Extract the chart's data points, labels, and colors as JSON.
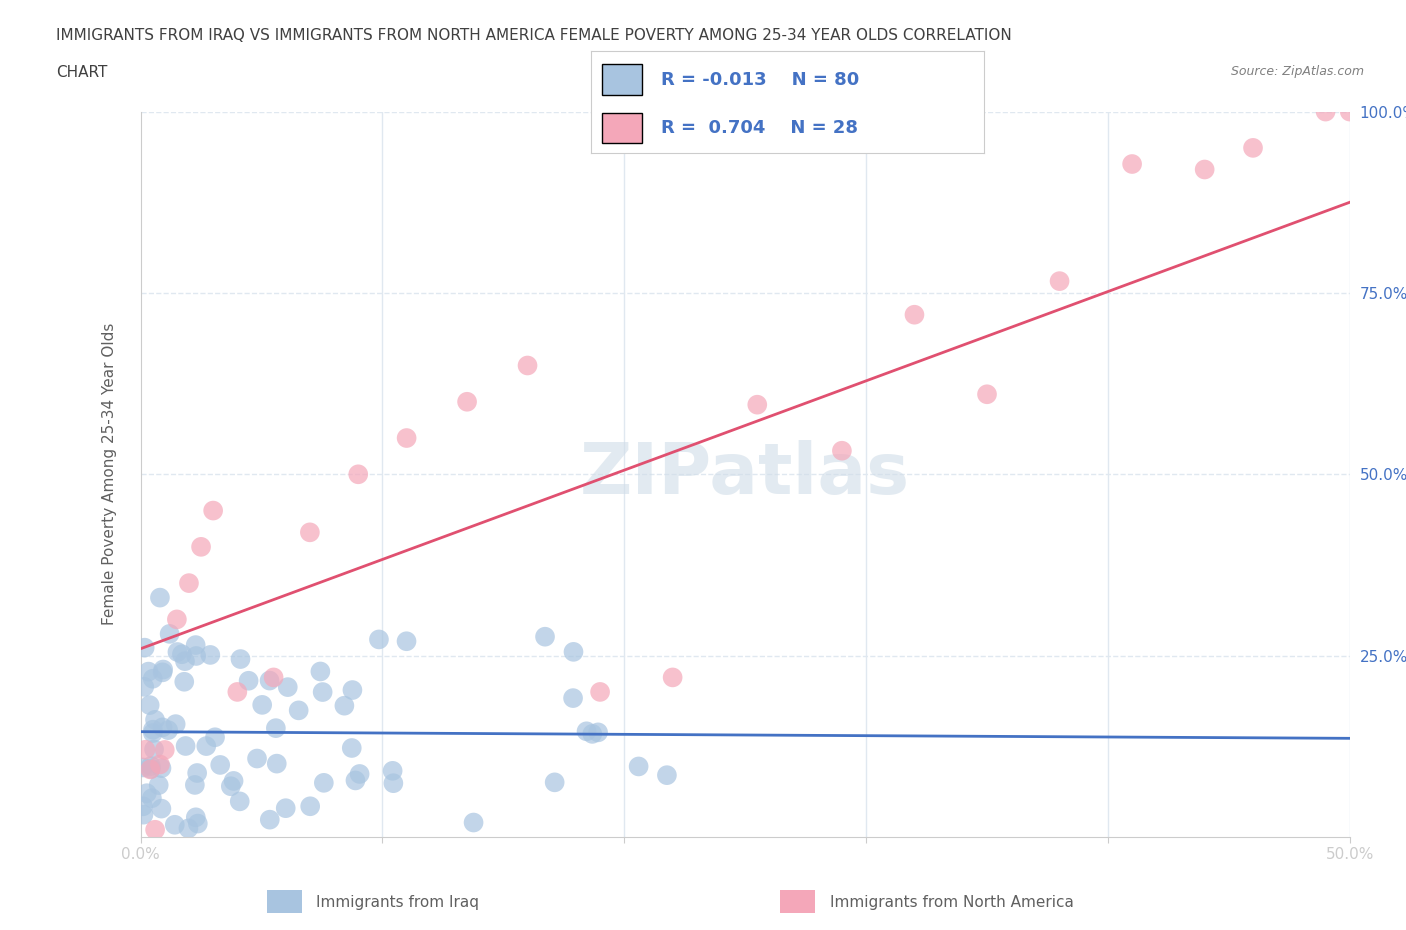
{
  "title_line1": "IMMIGRANTS FROM IRAQ VS IMMIGRANTS FROM NORTH AMERICA FEMALE POVERTY AMONG 25-34 YEAR OLDS CORRELATION",
  "title_line2": "CHART",
  "source_text": "Source: ZipAtlas.com",
  "ylabel": "Female Poverty Among 25-34 Year Olds",
  "xlabel_iraq": "Immigrants from Iraq",
  "xlabel_north_america": "Immigrants from North America",
  "xlim": [
    0.0,
    0.5
  ],
  "ylim": [
    0.0,
    1.0
  ],
  "iraq_R": -0.013,
  "iraq_N": 80,
  "north_america_R": 0.704,
  "north_america_N": 28,
  "iraq_color": "#a8c4e0",
  "iraq_line_color": "#4472c4",
  "north_america_color": "#f4a7b9",
  "north_america_line_color": "#e05070",
  "watermark_text": "ZIPatlas",
  "watermark_color": "#d0dde8",
  "background_color": "#ffffff",
  "grid_color": "#e0e8f0",
  "title_color": "#404040",
  "source_color": "#808080",
  "axis_label_color": "#606060",
  "tick_label_color": "#4472c4",
  "legend_R_color": "#4472c4"
}
